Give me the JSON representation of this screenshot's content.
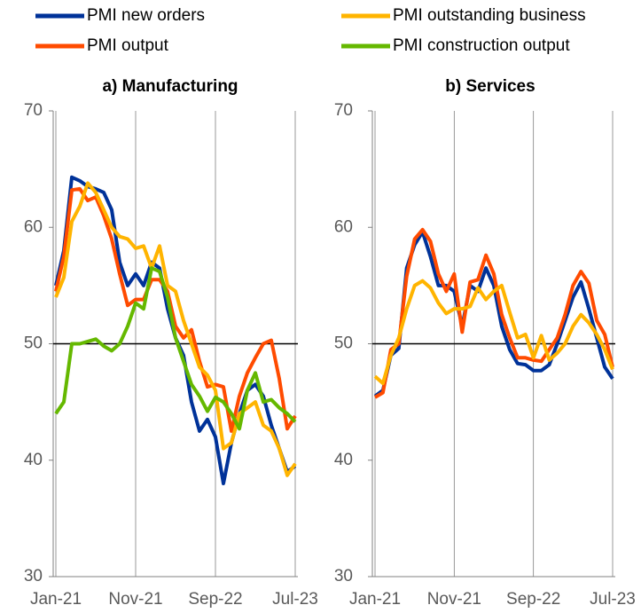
{
  "chart_data": [
    {
      "type": "line",
      "title": "a) Manufacturing",
      "categories": [
        "Jan-21",
        null,
        null,
        null,
        null,
        null,
        null,
        null,
        null,
        null,
        "Nov-21",
        null,
        null,
        null,
        null,
        null,
        null,
        null,
        null,
        null,
        "Sep-22",
        null,
        null,
        null,
        null,
        null,
        null,
        null,
        null,
        null,
        "Jul-23"
      ],
      "ylim": [
        30,
        70
      ],
      "yticks": [
        30,
        40,
        50,
        60,
        70
      ],
      "reference_line": 50,
      "series": [
        {
          "name": "PMI new orders",
          "color": "#003299",
          "values": [
            55,
            58,
            64.3,
            64,
            63.5,
            63.3,
            63,
            61.5,
            57,
            55,
            56,
            55,
            57,
            56.5,
            53,
            50.5,
            49,
            45,
            42.5,
            43.5,
            42,
            38,
            41.5,
            44,
            46,
            46.5,
            45.5,
            43,
            41,
            39,
            39.5
          ]
        },
        {
          "name": "PMI output",
          "color": "#ff4b00",
          "values": [
            54.5,
            57.5,
            63.2,
            63.3,
            62.3,
            62.6,
            61,
            59,
            56,
            53.3,
            53.8,
            53.8,
            55.5,
            55.5,
            54.5,
            51.5,
            50.5,
            51.2,
            48.5,
            46.3,
            46.5,
            46.3,
            42.5,
            45.5,
            47.5,
            48.8,
            50,
            50.3,
            47,
            42.7,
            43.8
          ]
        },
        {
          "name": "PMI outstanding business",
          "color": "#ffb400",
          "values": [
            54,
            55.7,
            60.5,
            61.8,
            63.8,
            63,
            61.5,
            60,
            59.2,
            59,
            58.2,
            58.4,
            56.5,
            58.4,
            55,
            54.5,
            52,
            50,
            48,
            47.3,
            46,
            41,
            41.5,
            44,
            44.5,
            45,
            43,
            42.5,
            41,
            38.7,
            39.7
          ]
        },
        {
          "name": "PMI construction output",
          "color": "#65b800",
          "values": [
            44,
            45,
            50,
            50,
            50.2,
            50.4,
            49.8,
            49.4,
            50,
            51.5,
            53.5,
            53,
            56.5,
            56.2,
            54,
            50.5,
            48.5,
            46.5,
            45.5,
            44.2,
            45.4,
            45,
            44,
            42.7,
            46,
            47.5,
            45,
            45.2,
            44.5,
            44,
            43.3
          ]
        }
      ]
    },
    {
      "type": "line",
      "title": "b) Services",
      "categories": [
        "Jan-21",
        null,
        null,
        null,
        null,
        null,
        null,
        null,
        null,
        null,
        "Nov-21",
        null,
        null,
        null,
        null,
        null,
        null,
        null,
        null,
        null,
        "Sep-22",
        null,
        null,
        null,
        null,
        null,
        null,
        null,
        null,
        null,
        "Jul-23"
      ],
      "ylim": [
        30,
        70
      ],
      "yticks": [
        30,
        40,
        50,
        60,
        70
      ],
      "reference_line": 50,
      "series": [
        {
          "color": "#003299",
          "values": [
            45.5,
            46,
            49,
            49.6,
            56.5,
            58.5,
            59.6,
            57.5,
            55,
            55,
            54.5,
            51.5,
            55,
            54.5,
            56.5,
            55,
            51.5,
            49.5,
            48.3,
            48.2,
            47.7,
            47.7,
            48.2,
            50,
            52,
            54,
            55.3,
            53,
            50.5,
            48,
            47
          ]
        },
        {
          "color": "#ff4b00",
          "values": [
            45.4,
            45.8,
            49.5,
            50,
            55.8,
            59,
            59.8,
            58.8,
            56,
            54.5,
            56,
            51,
            55.3,
            55.5,
            57.6,
            56,
            52.5,
            50.5,
            48.8,
            48.8,
            48.6,
            48.5,
            49.5,
            50.5,
            52.5,
            55,
            56.2,
            55.2,
            52,
            50.8,
            48
          ]
        },
        {
          "color": "#ffb400",
          "values": [
            47.2,
            46.6,
            49,
            50.5,
            53,
            55,
            55.4,
            54.8,
            53.5,
            52.6,
            53,
            53,
            53.2,
            54.8,
            53.8,
            54.5,
            55,
            52.7,
            50.5,
            50.8,
            48.8,
            50.7,
            48.6,
            49.2,
            50,
            51.5,
            52.5,
            51.8,
            50.8,
            49.5,
            47.8
          ]
        }
      ]
    }
  ]
}
